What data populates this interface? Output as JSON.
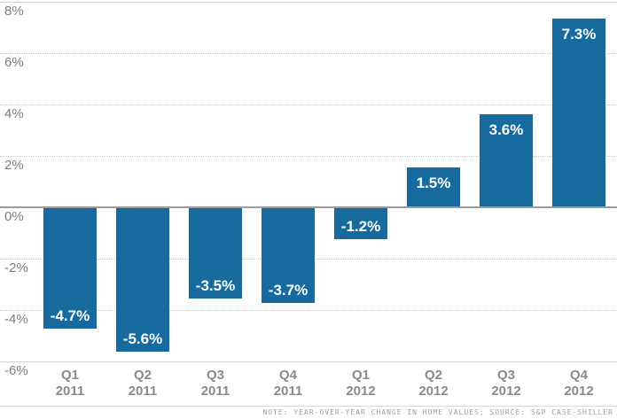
{
  "chart_data": {
    "type": "bar",
    "title": "",
    "xlabel": "",
    "ylabel": "",
    "categories": [
      {
        "quarter": "Q1",
        "year": "2011"
      },
      {
        "quarter": "Q2",
        "year": "2011"
      },
      {
        "quarter": "Q3",
        "year": "2011"
      },
      {
        "quarter": "Q4",
        "year": "2011"
      },
      {
        "quarter": "Q1",
        "year": "2012"
      },
      {
        "quarter": "Q2",
        "year": "2012"
      },
      {
        "quarter": "Q3",
        "year": "2012"
      },
      {
        "quarter": "Q4",
        "year": "2012"
      }
    ],
    "values": [
      -4.7,
      -5.6,
      -3.5,
      -3.7,
      -1.2,
      1.5,
      3.6,
      7.3
    ],
    "bar_labels": [
      "-4.7%",
      "-5.6%",
      "-3.5%",
      "-3.7%",
      "-1.2%",
      "1.5%",
      "3.6%",
      "7.3%"
    ],
    "ylim": [
      -6,
      8
    ],
    "yticks": [
      8,
      6,
      4,
      2,
      0,
      -2,
      -4,
      -6
    ],
    "ytick_labels": [
      "8%",
      "6%",
      "4%",
      "2%",
      "0%",
      "-2%",
      "-4%",
      "-6%"
    ],
    "grid": "horizontal dotted, solid zero line, solid top and bottom edges",
    "legend": "none",
    "bar_color": "#176a9e",
    "bar_label_color": "#ffffff"
  },
  "colors": {
    "background": "#ffffff",
    "bar": "#176a9e",
    "zero_line": "#9b9b9b",
    "grid_dotted": "#c6c6c6",
    "grid_edge": "#d4d4d4",
    "axis_text": "#7d7d7d",
    "xlabel_text": "#8a8a8a",
    "note_text": "#9e9e9e",
    "divider": "#dcdcdc"
  },
  "footer": {
    "note": "NOTE: YEAR-OVER-YEAR CHANGE IN HOME VALUES; SOURCE: S&P CASE-SHILLER"
  }
}
